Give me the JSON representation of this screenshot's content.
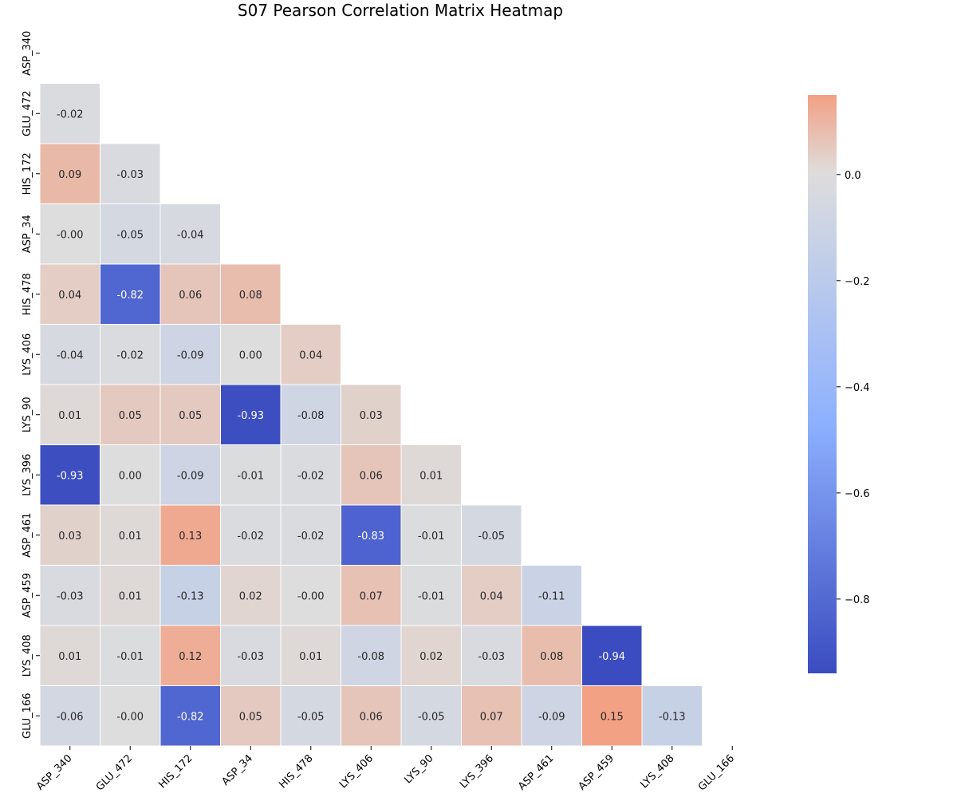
{
  "chart_data": {
    "type": "heatmap",
    "title": "S07 Pearson Correlation Matrix Heatmap",
    "labels": [
      "ASP_340",
      "GLU_472",
      "HIS_172",
      "ASP_34",
      "HIS_478",
      "LYS_406",
      "LYS_90",
      "LYS_396",
      "ASP_461",
      "ASP_459",
      "LYS_408",
      "GLU_166"
    ],
    "mask": "upper-triangle-and-diagonal",
    "matrix": [
      [],
      [
        -0.02
      ],
      [
        0.09,
        -0.03
      ],
      [
        -0.0,
        -0.05,
        -0.04
      ],
      [
        0.04,
        -0.82,
        0.06,
        0.08
      ],
      [
        -0.04,
        -0.02,
        -0.09,
        0.0,
        0.04
      ],
      [
        0.01,
        0.05,
        0.05,
        -0.93,
        -0.08,
        0.03
      ],
      [
        -0.93,
        0.0,
        -0.09,
        -0.01,
        -0.02,
        0.06,
        0.01
      ],
      [
        0.03,
        0.01,
        0.13,
        -0.02,
        -0.02,
        -0.83,
        -0.01,
        -0.05
      ],
      [
        -0.03,
        0.01,
        -0.13,
        0.02,
        -0.0,
        0.07,
        -0.01,
        0.04,
        -0.11
      ],
      [
        0.01,
        -0.01,
        0.12,
        -0.03,
        0.01,
        -0.08,
        0.02,
        -0.03,
        0.08,
        -0.94
      ],
      [
        -0.06,
        -0.0,
        -0.82,
        0.05,
        -0.05,
        0.06,
        -0.05,
        0.07,
        -0.09,
        0.15,
        -0.13
      ]
    ],
    "value_format": "0.00",
    "colormap": "coolwarm",
    "colorbar": {
      "vmin": -0.94,
      "vmax": 0.15,
      "ticks": [
        0.0,
        -0.2,
        -0.4,
        -0.6,
        -0.8
      ],
      "tick_labels": [
        "0.0",
        "−0.2",
        "−0.4",
        "−0.6",
        "−0.8"
      ],
      "placement": "right"
    },
    "grid": false
  }
}
